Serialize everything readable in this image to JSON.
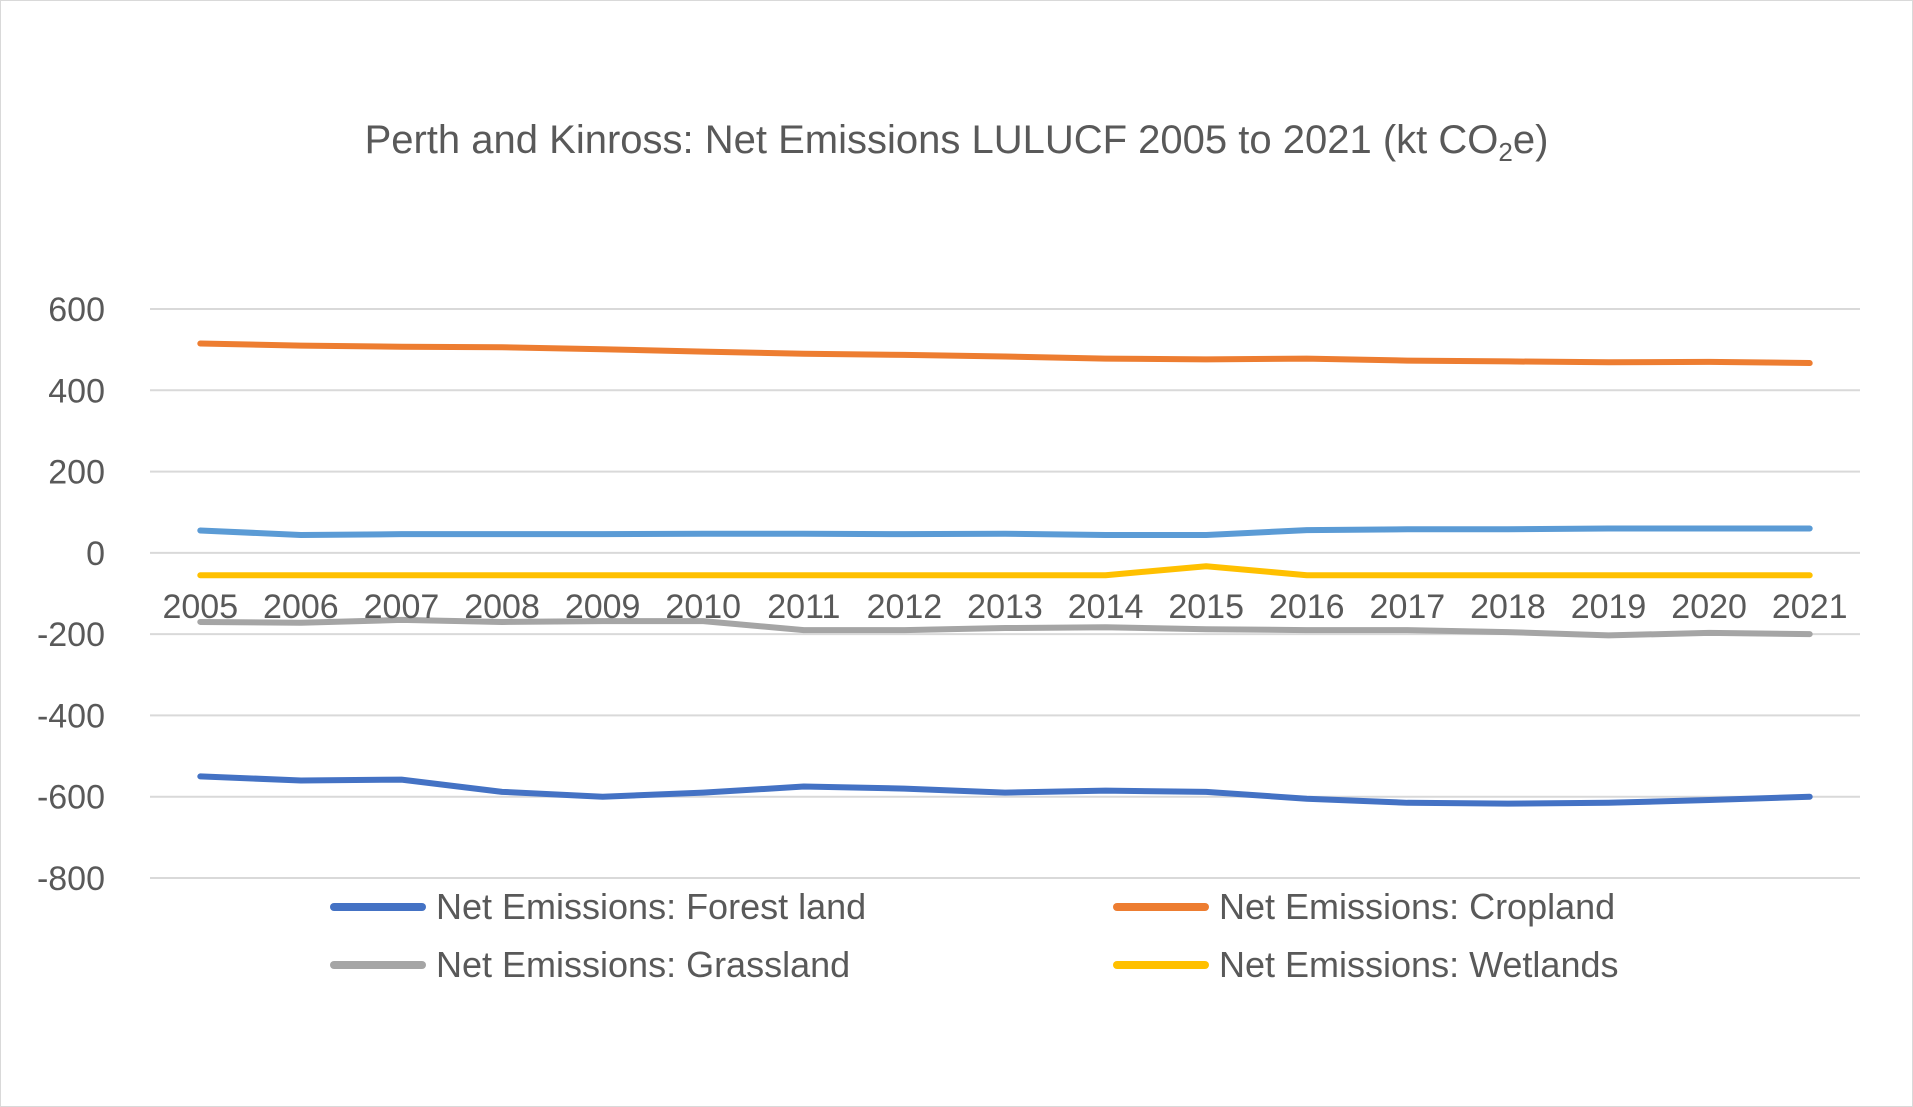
{
  "chart_data": {
    "type": "line",
    "title_main": "Perth and Kinross: Net Emissions LULUCF 2005 to 2021 (kt CO",
    "title_sub": "2",
    "title_end": "e)",
    "categories": [
      "2005",
      "2006",
      "2007",
      "2008",
      "2009",
      "2010",
      "2011",
      "2012",
      "2013",
      "2014",
      "2015",
      "2016",
      "2017",
      "2018",
      "2019",
      "2020",
      "2021"
    ],
    "y_ticks": [
      "600",
      "400",
      "200",
      "0",
      "-200",
      "-400",
      "-600",
      "-800"
    ],
    "ylim": [
      -800,
      600
    ],
    "grid": true,
    "legend_position": "bottom",
    "series": [
      {
        "name": "Net Emissions: Forest land",
        "color": "#4472C4",
        "values": [
          -550,
          -560,
          -558,
          -588,
          -600,
          -590,
          -575,
          -580,
          -590,
          -585,
          -588,
          -605,
          -615,
          -617,
          -615,
          -608,
          -600
        ]
      },
      {
        "name": "Net Emissions: Cropland",
        "color": "#ED7D31",
        "values": [
          515,
          510,
          507,
          506,
          501,
          495,
          490,
          487,
          483,
          478,
          476,
          478,
          473,
          471,
          469,
          470,
          467
        ]
      },
      {
        "name": "Net Emissions: Grassland",
        "color": "#A5A5A5",
        "values": [
          -170,
          -172,
          -165,
          -170,
          -168,
          -168,
          -190,
          -190,
          -185,
          -183,
          -188,
          -190,
          -190,
          -195,
          -203,
          -197,
          -200
        ]
      },
      {
        "name": "Net Emissions: Wetlands",
        "color": "#FFC000",
        "values": [
          -55,
          -55,
          -55,
          -55,
          -55,
          -55,
          -55,
          -55,
          -55,
          -55,
          -33,
          -55,
          -55,
          -55,
          -55,
          -55,
          -55
        ]
      },
      {
        "color": "#5B9BD5",
        "values": [
          55,
          44,
          46,
          46,
          46,
          47,
          47,
          46,
          47,
          44,
          44,
          56,
          58,
          58,
          60,
          60,
          60
        ]
      }
    ]
  }
}
